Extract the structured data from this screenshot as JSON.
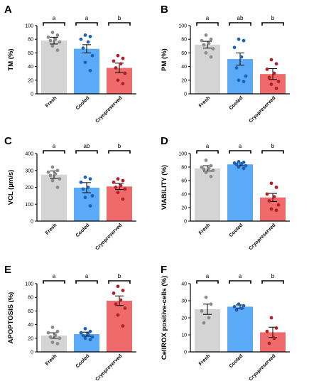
{
  "colors": {
    "fresh_bar": "#d4d4d4",
    "fresh_dot": "#8c8c8c",
    "cooled_bar": "#5aaaf7",
    "cooled_dot": "#1d62b5",
    "cryo_bar": "#ef6b6b",
    "cryo_dot": "#b0202a",
    "axis": "#000000"
  },
  "chart_data": [
    {
      "panel": "A",
      "type": "bar",
      "categories": [
        "Fresh",
        "Cooled",
        "Cryopreserved"
      ],
      "ylabel": "TM (%)",
      "ylim": [
        0,
        100
      ],
      "yticks": [
        0,
        20,
        40,
        60,
        80,
        100
      ],
      "values": [
        78,
        66,
        38
      ],
      "errors": [
        5,
        6,
        7
      ],
      "points": [
        [
          90,
          86,
          83,
          80,
          78,
          76,
          70,
          64
        ],
        [
          86,
          84,
          80,
          76,
          67,
          56,
          46,
          34
        ],
        [
          56,
          52,
          48,
          44,
          38,
          30,
          20,
          15
        ]
      ],
      "significance": [
        "a",
        "a",
        "b"
      ]
    },
    {
      "panel": "B",
      "type": "bar",
      "categories": [
        "Fresh",
        "Cooled",
        "Cryopreserved"
      ],
      "ylabel": "PM (%)",
      "ylim": [
        0,
        100
      ],
      "yticks": [
        0,
        20,
        40,
        60,
        80,
        100
      ],
      "values": [
        72,
        51,
        29
      ],
      "errors": [
        5,
        9,
        8
      ],
      "points": [
        [
          86,
          80,
          78,
          74,
          72,
          66,
          60,
          54
        ],
        [
          80,
          78,
          68,
          54,
          38,
          26,
          20,
          18
        ],
        [
          50,
          44,
          36,
          30,
          24,
          18,
          14,
          8
        ]
      ],
      "significance": [
        "a",
        "ab",
        "b"
      ]
    },
    {
      "panel": "C",
      "type": "bar",
      "categories": [
        "Fresh",
        "Cooled",
        "Cryopreserved"
      ],
      "ylabel": "VCL (µm/s)",
      "ylim": [
        0,
        400
      ],
      "yticks": [
        0,
        100,
        200,
        300,
        400
      ],
      "values": [
        275,
        198,
        205
      ],
      "errors": [
        22,
        30,
        18
      ],
      "points": [
        [
          320,
          300,
          290,
          280,
          270,
          250,
          240,
          200
        ],
        [
          260,
          250,
          230,
          200,
          190,
          150,
          140,
          90
        ],
        [
          250,
          240,
          230,
          210,
          200,
          190,
          170,
          130
        ]
      ],
      "significance": [
        "a",
        "ab",
        "b"
      ]
    },
    {
      "panel": "D",
      "type": "bar",
      "categories": [
        "Fresh",
        "Cooled",
        "Cryopreserved"
      ],
      "ylabel": "VIABILITY (%)",
      "ylim": [
        0,
        100
      ],
      "yticks": [
        0,
        20,
        40,
        60,
        80,
        100
      ],
      "values": [
        78,
        84,
        35
      ],
      "errors": [
        4,
        2,
        6
      ],
      "points": [
        [
          90,
          82,
          80,
          78,
          77,
          75,
          72,
          66
        ],
        [
          88,
          87,
          86,
          85,
          84,
          82,
          80,
          78
        ],
        [
          56,
          50,
          40,
          36,
          30,
          24,
          18,
          16
        ]
      ],
      "significance": [
        "a",
        "a",
        "b"
      ]
    },
    {
      "panel": "E",
      "type": "bar",
      "categories": [
        "Fresh",
        "Cooled",
        "Cryopreserved"
      ],
      "ylabel": "APOPTOSIS (%)",
      "ylim": [
        0,
        100
      ],
      "yticks": [
        0,
        20,
        40,
        60,
        80,
        100
      ],
      "values": [
        24,
        26,
        75
      ],
      "errors": [
        4,
        3,
        7
      ],
      "points": [
        [
          36,
          30,
          28,
          24,
          22,
          20,
          14,
          12
        ],
        [
          34,
          30,
          28,
          26,
          24,
          22,
          20,
          18
        ],
        [
          96,
          90,
          86,
          76,
          70,
          64,
          54,
          38
        ]
      ],
      "significance": [
        "a",
        "a",
        "b"
      ]
    },
    {
      "panel": "F",
      "type": "bar",
      "categories": [
        "Fresh",
        "Cooled",
        "Cryopreserved"
      ],
      "ylabel": "CellROX positive-cells (%)",
      "ylim": [
        0,
        40
      ],
      "yticks": [
        0,
        10,
        20,
        30,
        40
      ],
      "values": [
        25,
        26.5,
        11.5
      ],
      "errors": [
        3,
        1,
        3
      ],
      "points": [
        [
          32,
          28,
          24,
          20,
          17
        ],
        [
          28,
          27,
          26.5,
          25.5,
          24.5
        ],
        [
          20,
          14,
          12,
          8,
          5
        ]
      ],
      "significance": [
        "a",
        "a",
        "b"
      ]
    }
  ]
}
